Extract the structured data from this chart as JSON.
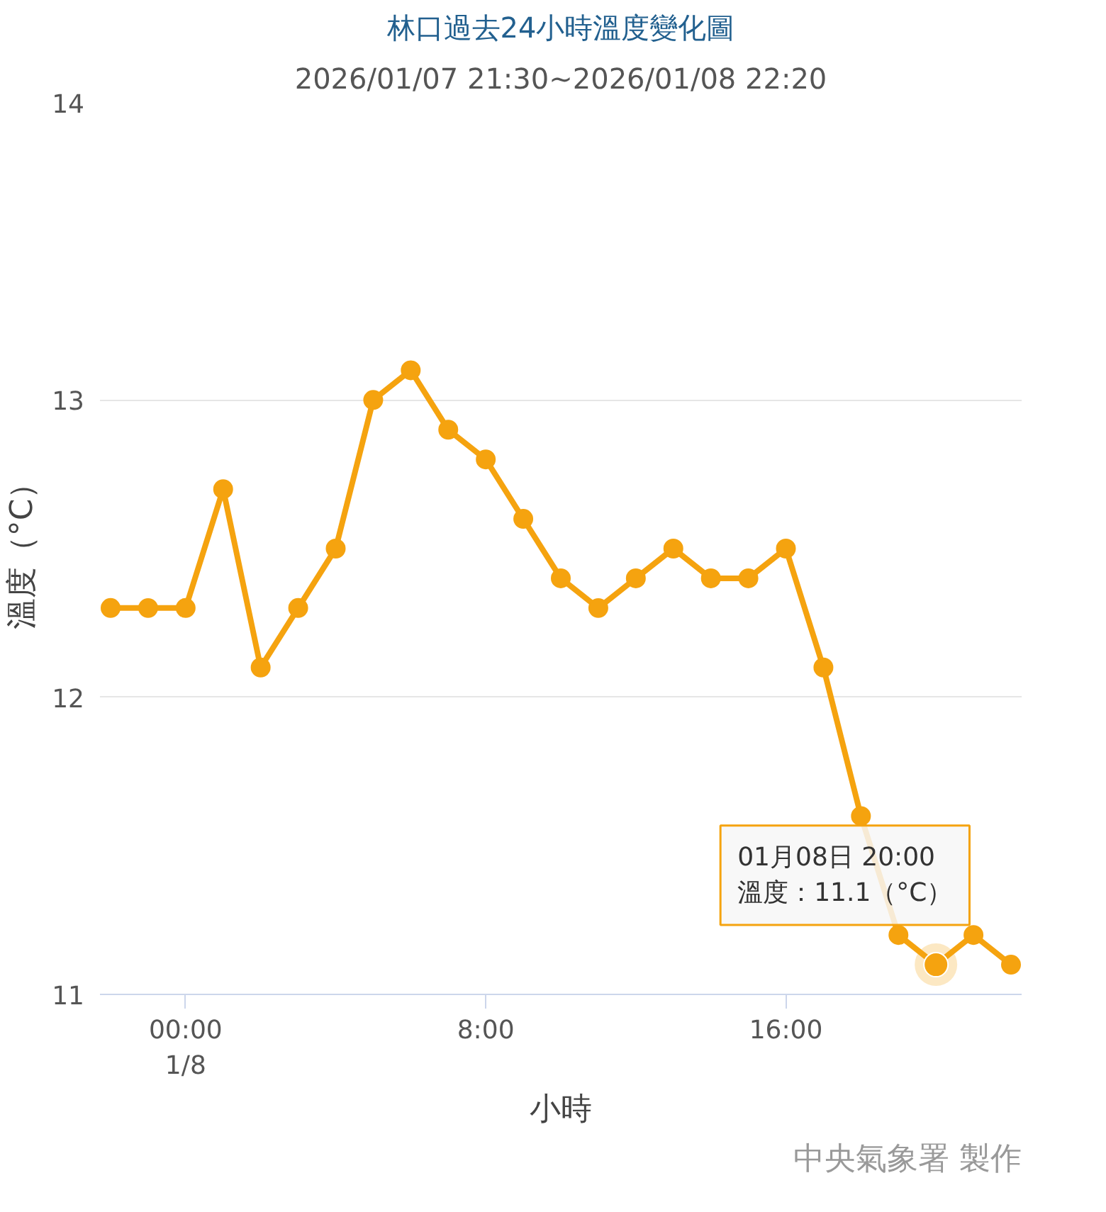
{
  "chart_data": {
    "type": "line",
    "title": "林口過去24小時溫度變化圖",
    "subtitle": "2026/01/07 21:30~2026/01/08 22:20",
    "xlabel": "小時",
    "ylabel": "溫度（°C）",
    "x": [
      "2026-01-07T22:00",
      "2026-01-07T23:00",
      "2026-01-08T00:00",
      "2026-01-08T01:00",
      "2026-01-08T02:00",
      "2026-01-08T03:00",
      "2026-01-08T04:00",
      "2026-01-08T05:00",
      "2026-01-08T06:00",
      "2026-01-08T07:00",
      "2026-01-08T08:00",
      "2026-01-08T09:00",
      "2026-01-08T10:00",
      "2026-01-08T11:00",
      "2026-01-08T12:00",
      "2026-01-08T13:00",
      "2026-01-08T14:00",
      "2026-01-08T15:00",
      "2026-01-08T16:00",
      "2026-01-08T17:00",
      "2026-01-08T18:00",
      "2026-01-08T19:00",
      "2026-01-08T20:00",
      "2026-01-08T21:00",
      "2026-01-08T22:00"
    ],
    "series": [
      {
        "color": "#f5a30f",
        "values": [
          12.3,
          12.3,
          12.3,
          12.7,
          12.1,
          12.3,
          12.5,
          13.0,
          13.1,
          12.9,
          12.8,
          12.6,
          12.4,
          12.3,
          12.4,
          12.5,
          12.4,
          12.4,
          12.5,
          12.1,
          11.6,
          11.2,
          11.1,
          11.2,
          11.1
        ]
      }
    ],
    "xlim": [
      "2026-01-07T21:43",
      "2026-01-08T22:17"
    ],
    "ylim": [
      11,
      14
    ],
    "xticks": [
      {
        "value": "2026-01-08T00:00",
        "label": "00:00\n1/8"
      },
      {
        "value": "2026-01-08T08:00",
        "label": "8:00"
      },
      {
        "value": "2026-01-08T16:00",
        "label": "16:00"
      }
    ],
    "yticks": [
      11,
      12,
      13,
      14
    ],
    "grid": "y",
    "marker": "circle",
    "line_style": "solid",
    "annotations": [
      {
        "text": "01月08日 20:00\n溫度：11.1（°C）",
        "x": "2026-01-08T20:00",
        "y": 11.1
      },
      "中央氣象署 製作"
    ]
  }
}
